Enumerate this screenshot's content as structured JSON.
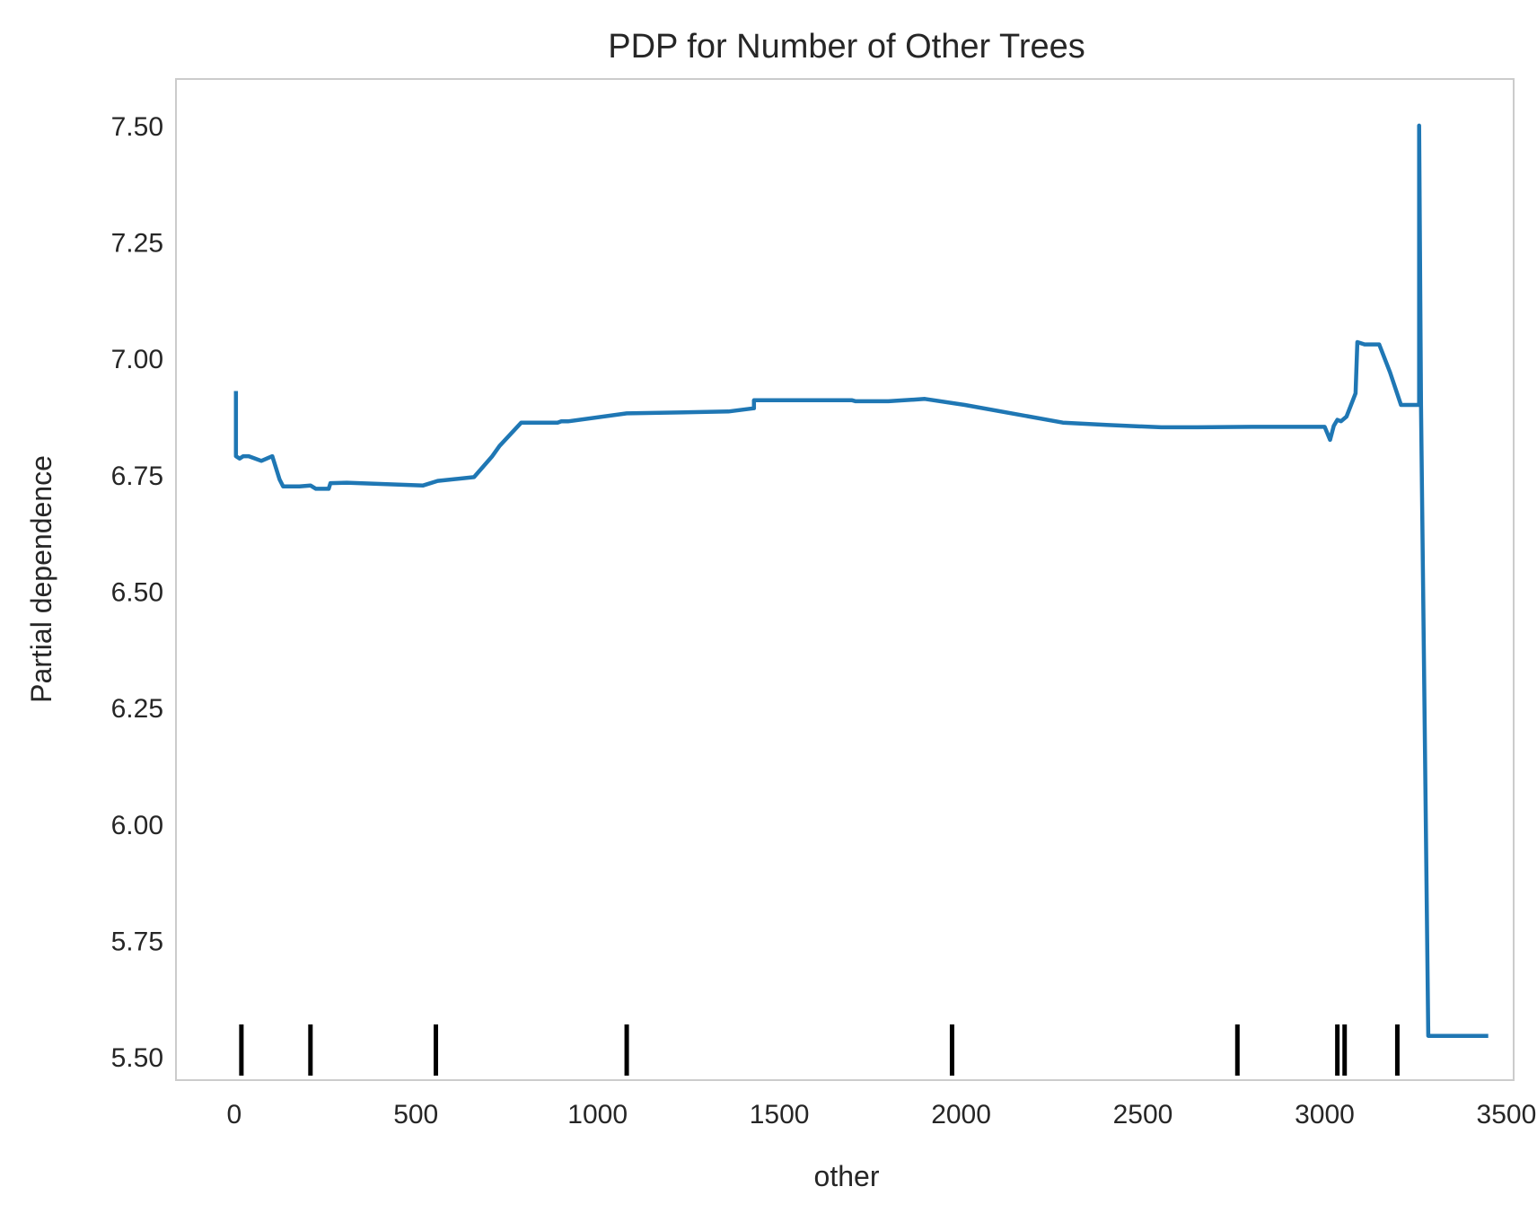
{
  "chart_data": {
    "type": "line",
    "title": "PDP for Number of Other Trees",
    "xlabel": "other",
    "ylabel": "Partial dependence",
    "xlim": [
      -160,
      3520
    ],
    "ylim": [
      5.45,
      7.6
    ],
    "xticks": [
      0,
      500,
      1000,
      1500,
      2000,
      2500,
      3000,
      3500
    ],
    "xtick_labels": [
      "0",
      "500",
      "1000",
      "1500",
      "2000",
      "2500",
      "3000",
      "3500"
    ],
    "yticks": [
      5.5,
      5.75,
      6.0,
      6.25,
      6.5,
      6.75,
      7.0,
      7.25,
      7.5
    ],
    "ytick_labels": [
      "5.50",
      "5.75",
      "6.00",
      "6.25",
      "6.50",
      "6.75",
      "7.00",
      "7.25",
      "7.50"
    ],
    "grid": false,
    "line_color": "#1f77b4",
    "rug_color": "#000000",
    "series": [
      {
        "x": [
          5,
          5,
          15,
          25,
          40,
          75,
          105,
          125,
          135,
          180,
          210,
          225,
          260,
          265,
          310,
          520,
          560,
          660,
          710,
          730,
          790,
          890,
          900,
          920,
          1080,
          1360,
          1430,
          1430,
          1700,
          1710,
          1800,
          1900,
          2010,
          2280,
          2400,
          2550,
          2650,
          2800,
          3000,
          3015,
          3025,
          3035,
          3045,
          3060,
          3085,
          3090,
          3110,
          3150,
          3180,
          3210,
          3260,
          3260,
          3265,
          3285,
          3450
        ],
        "y": [
          6.93,
          6.79,
          6.785,
          6.79,
          6.79,
          6.78,
          6.79,
          6.74,
          6.725,
          6.725,
          6.727,
          6.72,
          6.72,
          6.732,
          6.733,
          6.727,
          6.737,
          6.745,
          6.79,
          6.812,
          6.862,
          6.862,
          6.865,
          6.865,
          6.882,
          6.886,
          6.893,
          6.91,
          6.91,
          6.908,
          6.908,
          6.913,
          6.9,
          6.862,
          6.857,
          6.852,
          6.852,
          6.853,
          6.853,
          6.825,
          6.855,
          6.868,
          6.865,
          6.875,
          6.925,
          7.035,
          7.03,
          7.03,
          6.97,
          6.9,
          6.9,
          7.5,
          6.9,
          5.545,
          5.545
        ]
      }
    ],
    "rug_x": [
      20,
      210,
      555,
      1080,
      1975,
      2760,
      3035,
      3055,
      3200
    ]
  }
}
